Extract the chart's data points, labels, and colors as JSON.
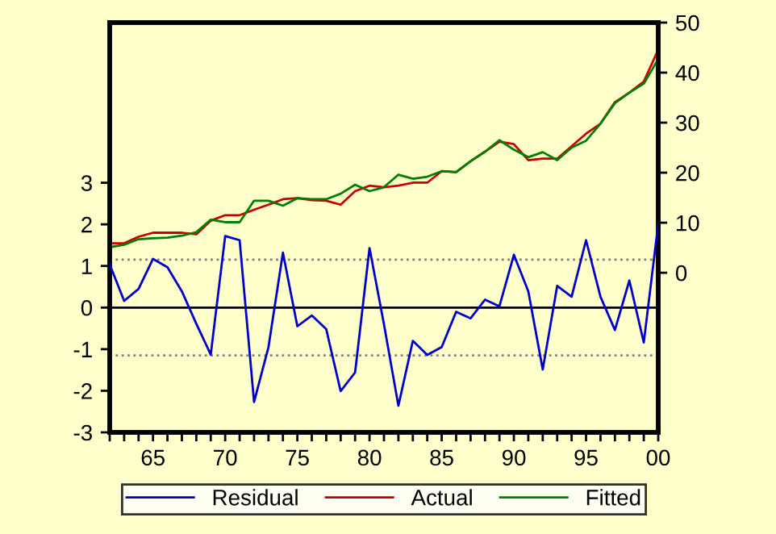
{
  "chart_data": {
    "type": "line",
    "x": [
      1962,
      1963,
      1964,
      1965,
      1966,
      1967,
      1968,
      1969,
      1970,
      1971,
      1972,
      1973,
      1974,
      1975,
      1976,
      1977,
      1978,
      1979,
      1980,
      1981,
      1982,
      1983,
      1984,
      1985,
      1986,
      1987,
      1988,
      1989,
      1990,
      1991,
      1992,
      1993,
      1994,
      1995,
      1996,
      1997,
      1998,
      1999,
      2000
    ],
    "series": [
      {
        "name": "Residual",
        "color": "#0000cc",
        "values": [
          1.04,
          0.16,
          0.45,
          1.17,
          0.97,
          0.39,
          -0.39,
          -1.13,
          1.72,
          1.62,
          -2.27,
          -0.95,
          1.32,
          -0.45,
          -0.19,
          -0.52,
          -2.01,
          -1.56,
          1.43,
          -0.4,
          -2.36,
          -0.8,
          -1.14,
          -0.95,
          -0.1,
          -0.26,
          0.19,
          0.03,
          1.27,
          0.39,
          -1.49,
          0.52,
          0.26,
          1.62,
          0.26,
          -0.54,
          0.65,
          -0.84,
          2.01
        ]
      },
      {
        "name": "Actual",
        "color": "#cc0000",
        "axis": "y2",
        "values": [
          5.9,
          5.9,
          7.2,
          8.0,
          8.0,
          8.0,
          7.7,
          10.4,
          11.5,
          11.5,
          12.6,
          13.6,
          14.7,
          14.9,
          14.5,
          14.4,
          13.6,
          16.3,
          17.4,
          17.1,
          17.4,
          18.0,
          18.0,
          20.3,
          20.1,
          22.3,
          24.2,
          26.2,
          25.7,
          22.5,
          22.8,
          22.8,
          25.3,
          27.8,
          29.8,
          34.1,
          36.0,
          38.2,
          44.6
        ]
      },
      {
        "name": "Fitted",
        "color": "#007f00",
        "axis": "y2",
        "values": [
          5.1,
          5.6,
          6.7,
          6.9,
          7.0,
          7.4,
          8.1,
          10.6,
          10.1,
          10.1,
          14.4,
          14.4,
          13.4,
          14.9,
          14.7,
          14.7,
          15.8,
          17.6,
          16.3,
          17.1,
          19.6,
          18.8,
          19.2,
          20.3,
          20.1,
          22.3,
          24.2,
          26.5,
          24.6,
          23.1,
          24.1,
          22.5,
          25.0,
          26.4,
          29.8,
          33.9,
          36.0,
          37.8,
          42.7
        ]
      }
    ],
    "xlim": [
      1962,
      2000
    ],
    "xticks": [
      {
        "value": 1962,
        "label": null
      },
      {
        "value": 1963,
        "label": null
      },
      {
        "value": 1964,
        "label": null
      },
      {
        "value": 1965,
        "label": "65"
      },
      {
        "value": 1966,
        "label": null
      },
      {
        "value": 1967,
        "label": null
      },
      {
        "value": 1968,
        "label": null
      },
      {
        "value": 1969,
        "label": null
      },
      {
        "value": 1970,
        "label": "70"
      },
      {
        "value": 1971,
        "label": null
      },
      {
        "value": 1972,
        "label": null
      },
      {
        "value": 1973,
        "label": null
      },
      {
        "value": 1974,
        "label": null
      },
      {
        "value": 1975,
        "label": "75"
      },
      {
        "value": 1976,
        "label": null
      },
      {
        "value": 1977,
        "label": null
      },
      {
        "value": 1978,
        "label": null
      },
      {
        "value": 1979,
        "label": null
      },
      {
        "value": 1980,
        "label": "80"
      },
      {
        "value": 1981,
        "label": null
      },
      {
        "value": 1982,
        "label": null
      },
      {
        "value": 1983,
        "label": null
      },
      {
        "value": 1984,
        "label": null
      },
      {
        "value": 1985,
        "label": "85"
      },
      {
        "value": 1986,
        "label": null
      },
      {
        "value": 1987,
        "label": null
      },
      {
        "value": 1988,
        "label": null
      },
      {
        "value": 1989,
        "label": null
      },
      {
        "value": 1990,
        "label": "90"
      },
      {
        "value": 1991,
        "label": null
      },
      {
        "value": 1992,
        "label": null
      },
      {
        "value": 1993,
        "label": null
      },
      {
        "value": 1994,
        "label": null
      },
      {
        "value": 1995,
        "label": "95"
      },
      {
        "value": 1996,
        "label": null
      },
      {
        "value": 1997,
        "label": null
      },
      {
        "value": 1998,
        "label": null
      },
      {
        "value": 1999,
        "label": null
      },
      {
        "value": 2000,
        "label": "00"
      }
    ],
    "ylim": [
      -3,
      6.85
    ],
    "yticks": [
      -3,
      -2,
      -1,
      0,
      1,
      2,
      3
    ],
    "y2lim": [
      -31.9,
      50
    ],
    "y2ticks": [
      0,
      10,
      20,
      30,
      40,
      50
    ],
    "ref_lines": [
      {
        "axis": "y",
        "value": 0,
        "color": "#000000",
        "line_style": "solid"
      },
      {
        "axis": "y",
        "value": 1.15,
        "color": "#808080",
        "line_style": "dotted"
      },
      {
        "axis": "y",
        "value": -1.15,
        "color": "#808080",
        "line_style": "dotted"
      }
    ],
    "grid": false,
    "legend": "bottom",
    "marker": "none",
    "line_style": "solid"
  }
}
